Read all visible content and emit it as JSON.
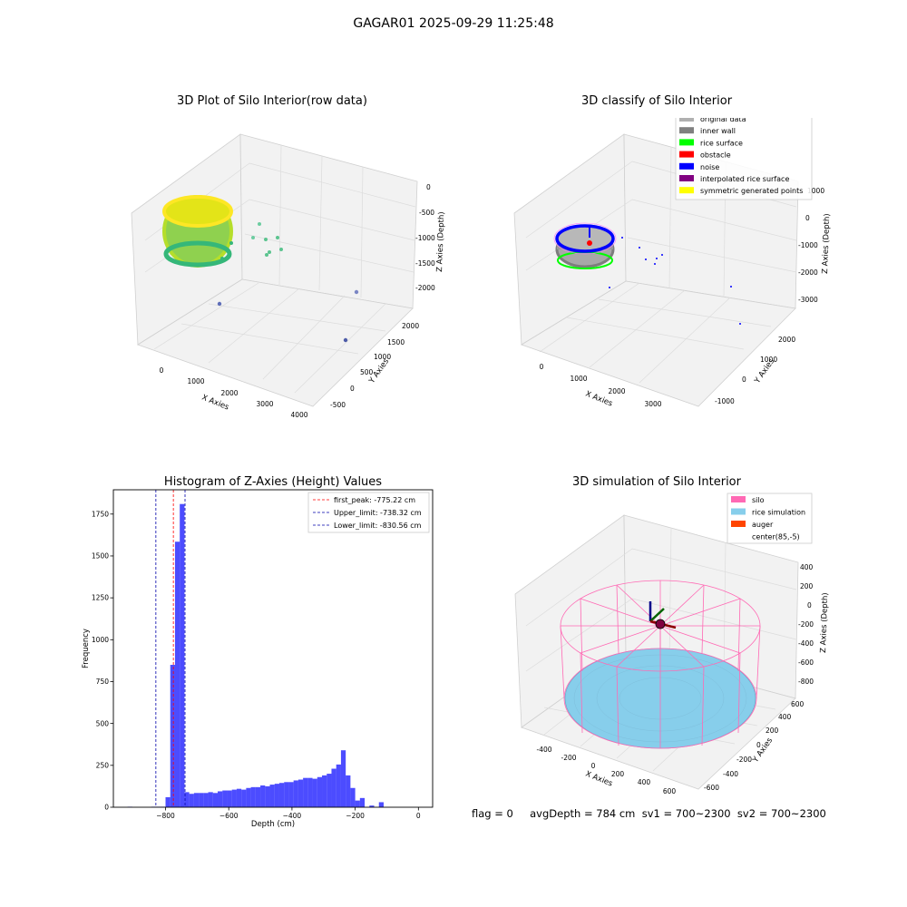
{
  "suptitle": "GAGAR01 2025-09-29 11:25:48",
  "plot1": {
    "title": "3D Plot of Silo Interior(row data)",
    "xlabel": "X Axies",
    "ylabel": "Y Axies",
    "zlabel": "Z Axies (Depth)",
    "xticks": [
      "0",
      "1000",
      "2000",
      "3000",
      "4000"
    ],
    "yticks": [
      "-500",
      "0",
      "500",
      "1000",
      "1500",
      "2000"
    ],
    "zticks": [
      "0",
      "-500",
      "-1000",
      "-1500",
      "-2000"
    ]
  },
  "plot2": {
    "title": "3D classify of Silo Interior",
    "xlabel": "X Axies",
    "ylabel": "Y Axies",
    "zlabel": "Z Axies (Depth)",
    "xticks": [
      "0",
      "1000",
      "2000",
      "3000"
    ],
    "yticks": [
      "-1000",
      "0",
      "1000",
      "2000"
    ],
    "zticks": [
      "1000",
      "0",
      "-1000",
      "-2000",
      "-3000"
    ],
    "legend": [
      {
        "label": "original data",
        "color": "#b0b0b0"
      },
      {
        "label": "inner wall",
        "color": "#808080"
      },
      {
        "label": "rice surface",
        "color": "#00ff00"
      },
      {
        "label": "obstacle",
        "color": "#ff0000"
      },
      {
        "label": "noise",
        "color": "#0000ff"
      },
      {
        "label": "interpolated rice surface",
        "color": "#800080"
      },
      {
        "label": "symmetric generated points",
        "color": "#ffff00"
      }
    ]
  },
  "plot4": {
    "title": "3D simulation of Silo Interior",
    "xlabel": "X Axies",
    "ylabel": "Y Axies",
    "zlabel": "Z Axies (Depth)",
    "xticks": [
      "-400",
      "-200",
      "0",
      "200",
      "400",
      "600"
    ],
    "yticks": [
      "-600",
      "-400",
      "-200",
      "0",
      "200",
      "400",
      "600"
    ],
    "zticks": [
      "400",
      "200",
      "0",
      "-200",
      "-400",
      "-600",
      "-800"
    ],
    "legend": [
      {
        "label": "silo",
        "color": "#ff69b4"
      },
      {
        "label": "rice simulation",
        "color": "#87ceeb"
      },
      {
        "label": "auger",
        "color": "#ff4500"
      },
      {
        "label": "center(85,-5)",
        "color": "none"
      }
    ]
  },
  "bottom_text": "flag = 0     avgDepth = 784 cm  sv1 = 700~2300  sv2 = 700~2300",
  "chart_data": [
    {
      "type": "bar",
      "title": "Histogram of Z-Axies (Height) Values",
      "xlabel": "Depth (cm)",
      "ylabel": "Frequency",
      "xlim": [
        -965,
        45
      ],
      "ylim": [
        0,
        1895
      ],
      "bin_width": 15,
      "bin_start": -920,
      "values": [
        3,
        0,
        0,
        0,
        0,
        3,
        3,
        3,
        60,
        850,
        1585,
        1810,
        90,
        80,
        85,
        85,
        85,
        90,
        85,
        95,
        100,
        100,
        105,
        110,
        105,
        115,
        120,
        120,
        130,
        125,
        135,
        140,
        145,
        150,
        150,
        160,
        165,
        175,
        175,
        170,
        180,
        190,
        200,
        230,
        255,
        340,
        190,
        115,
        40,
        55,
        0,
        10,
        0,
        30
      ],
      "bar_color": "#0000ff",
      "vlines": [
        {
          "name": "first_peak: -775.22 cm",
          "x": -775.22,
          "color": "#ff0000"
        },
        {
          "name": "Upper_limit: -738.32 cm",
          "x": -738.32,
          "color": "#0000aa"
        },
        {
          "name": "Lower_limit: -830.56 cm",
          "x": -830.56,
          "color": "#0000aa"
        }
      ],
      "xticks": [
        -800,
        -600,
        -400,
        -200,
        0
      ],
      "yticks": [
        0,
        250,
        500,
        750,
        1000,
        1250,
        1500,
        1750
      ],
      "legend_position": "top-right"
    }
  ]
}
